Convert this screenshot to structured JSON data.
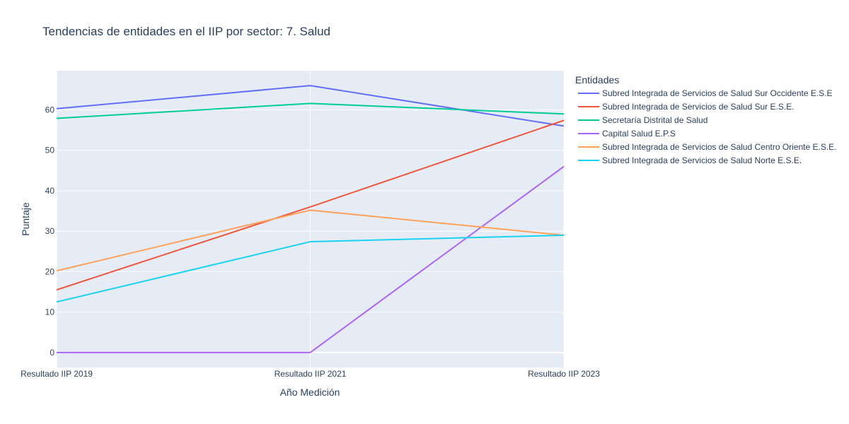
{
  "chart_data": {
    "type": "line",
    "title": "Tendencias de entidades en el IIP por sector: 7. Salud",
    "xlabel": "Año Medición",
    "ylabel": "Puntaje",
    "categories": [
      "Resultado IIP 2019",
      "Resultado IIP 2021",
      "Resultado IIP 2023"
    ],
    "ylim": [
      -3.7,
      69.7
    ],
    "yticks": [
      0,
      10,
      20,
      30,
      40,
      50,
      60
    ],
    "grid": true,
    "legend": {
      "title": "Entidades",
      "placement": "right-top"
    },
    "series": [
      {
        "name": "Subred Integrada de Servicios de Salud Sur Occidente E.S.E",
        "color": "#636efa",
        "values": [
          60.3,
          66.0,
          56.0
        ]
      },
      {
        "name": "Subred Integrada de Servicios de Salud Sur E.S.E.",
        "color": "#ef553b",
        "values": [
          15.5,
          36.0,
          57.4
        ]
      },
      {
        "name": "Secretaría Distrital de Salud",
        "color": "#00cc96",
        "values": [
          57.9,
          61.6,
          59.0
        ]
      },
      {
        "name": "Capital Salud E.P.S",
        "color": "#ab63fa",
        "values": [
          0,
          0,
          46.0
        ]
      },
      {
        "name": "Subred Integrada de Servicios de Salud Centro Oriente E.S.E.",
        "color": "#ffa15a",
        "values": [
          20.2,
          35.2,
          29.0
        ]
      },
      {
        "name": "Subred Integrada de Servicios de Salud Norte  E.S.E.",
        "color": "#19d3f3",
        "values": [
          12.5,
          27.4,
          29.0
        ]
      }
    ]
  }
}
